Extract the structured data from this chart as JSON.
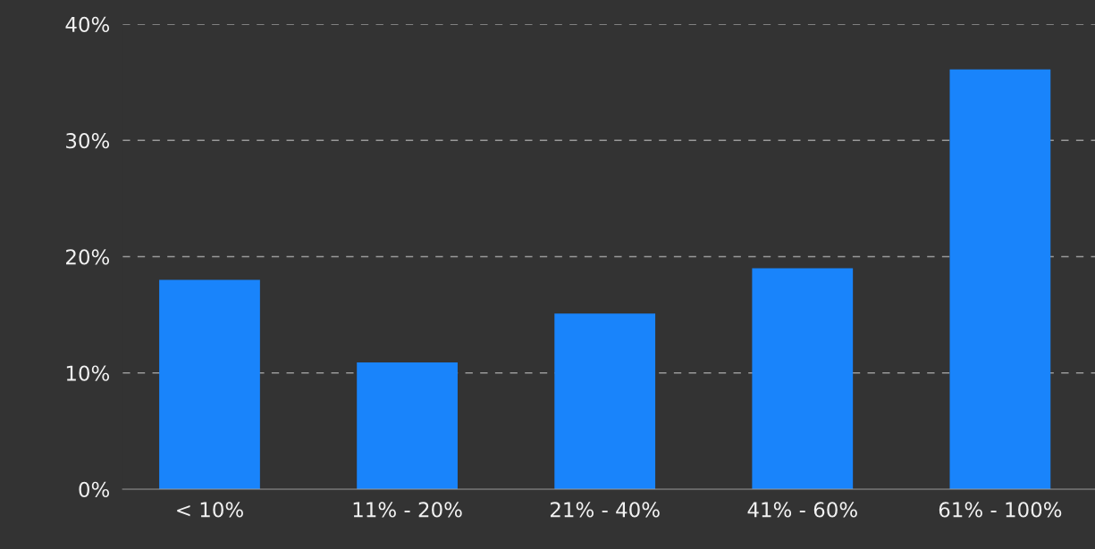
{
  "chart_data": {
    "type": "bar",
    "categories": [
      "< 10%",
      "11% - 20%",
      "21% - 40%",
      "41% - 60%",
      "61% - 100%"
    ],
    "values": [
      18,
      10.9,
      15.1,
      19,
      36.1
    ],
    "color": "#1984fb",
    "ylim": [
      0,
      40
    ],
    "yticks": [
      {
        "value": 0,
        "label": "0%"
      },
      {
        "value": 10,
        "label": "10%"
      },
      {
        "value": 20,
        "label": "20%"
      },
      {
        "value": 30,
        "label": "30%"
      },
      {
        "value": 40,
        "label": "40%"
      }
    ],
    "grid": "y",
    "legend": false
  }
}
